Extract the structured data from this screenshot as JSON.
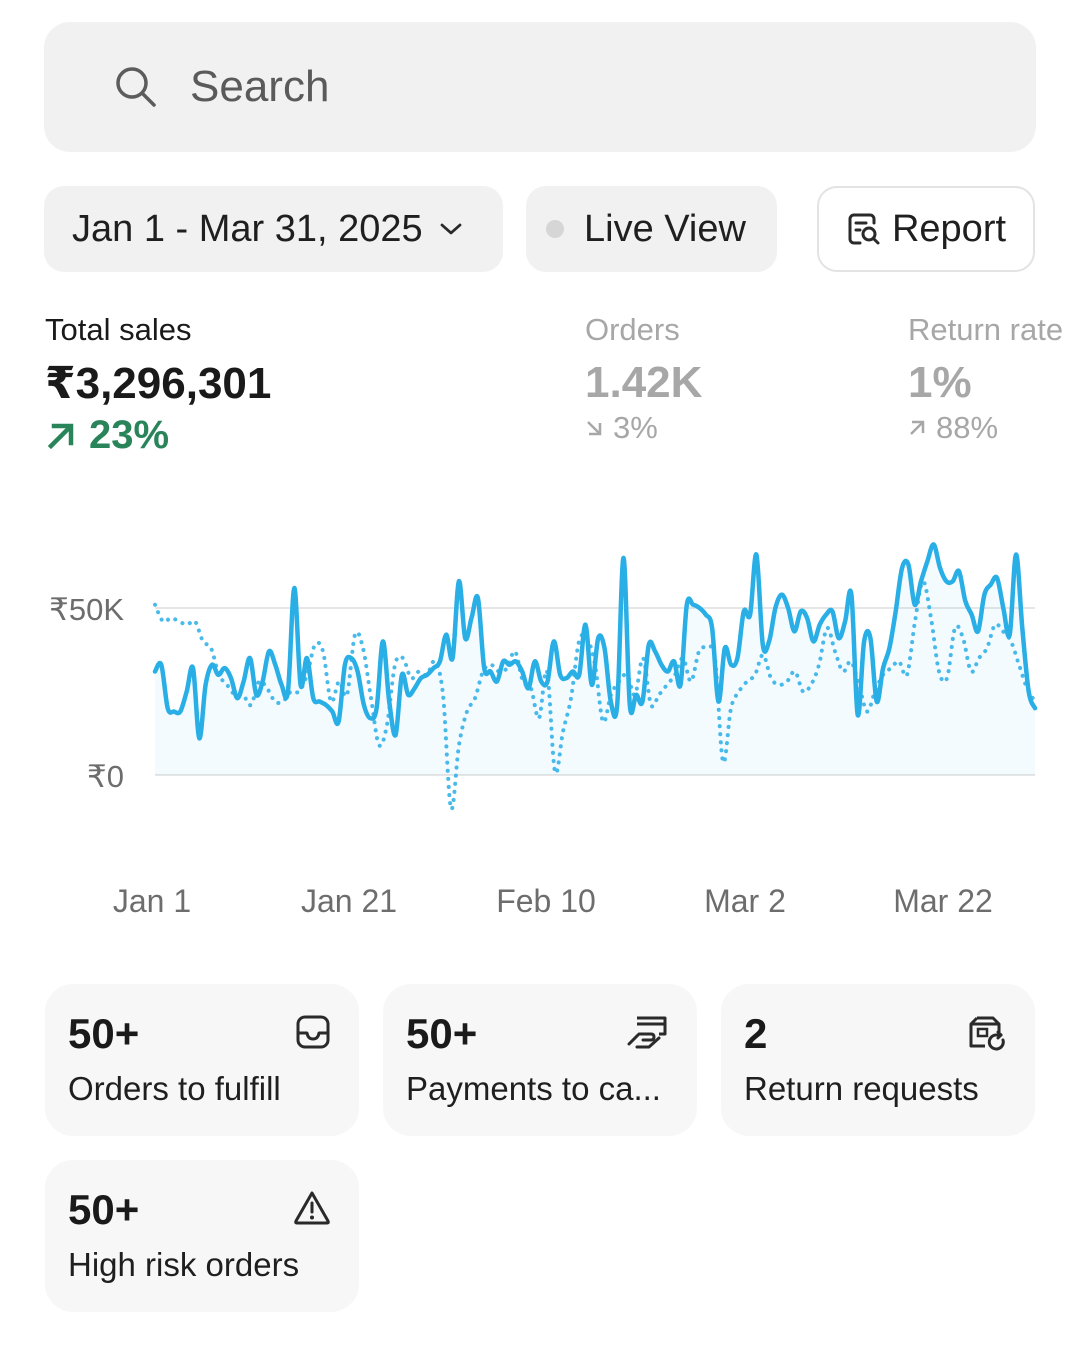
{
  "search": {
    "placeholder": "Search"
  },
  "filters": {
    "date_range": "Jan 1 - Mar 31, 2025",
    "live_view": "Live View",
    "report": "Report"
  },
  "metrics": {
    "total_sales": {
      "label": "Total sales",
      "value": "₹3,296,301",
      "change": "23%",
      "direction": "up"
    },
    "orders": {
      "label": "Orders",
      "value": "1.42K",
      "change": "3%",
      "direction": "down"
    },
    "return_rate": {
      "label": "Return rate",
      "value": "1%",
      "change": "88%",
      "direction": "up"
    }
  },
  "colors": {
    "accent_line": "#29aee6",
    "positive": "#29845a",
    "muted": "#a7a7a7"
  },
  "chart_data": {
    "type": "line",
    "x_tick_labels": [
      "Jan 1",
      "Jan 21",
      "Feb 10",
      "Mar 2",
      "Mar 22"
    ],
    "y_tick_labels": [
      "₹50K",
      "₹0"
    ],
    "ylim": [
      -10000,
      72000
    ],
    "grid": true,
    "series": [
      {
        "style": "solid",
        "values": [
          31000,
          33000,
          20000,
          19000,
          19000,
          25000,
          32000,
          11000,
          27000,
          33000,
          30000,
          32000,
          29000,
          23000,
          28000,
          35000,
          24000,
          28000,
          37000,
          33000,
          27000,
          25000,
          56000,
          27000,
          35000,
          23000,
          22000,
          21000,
          19000,
          16000,
          33000,
          35000,
          31000,
          21000,
          17000,
          20000,
          40000,
          22000,
          12000,
          30000,
          24000,
          26000,
          29000,
          30000,
          32000,
          34000,
          42000,
          35000,
          58000,
          41000,
          47000,
          53000,
          32000,
          31000,
          28000,
          34000,
          33000,
          34000,
          31000,
          26000,
          34000,
          28000,
          28000,
          40000,
          30000,
          29000,
          31000,
          30000,
          45000,
          27000,
          41000,
          38000,
          22000,
          21000,
          65000,
          21000,
          24000,
          22000,
          39000,
          37000,
          33000,
          31000,
          34000,
          27000,
          51000,
          51000,
          50000,
          48000,
          44000,
          22000,
          38000,
          33000,
          35000,
          49000,
          48000,
          66000,
          39000,
          40000,
          50000,
          54000,
          50000,
          43000,
          49000,
          47000,
          40000,
          45000,
          48000,
          49000,
          41000,
          46000,
          54000,
          18000,
          40000,
          41000,
          22000,
          32000,
          38000,
          49000,
          62000,
          63000,
          51000,
          58000,
          64000,
          69000,
          62000,
          58000,
          58000,
          61000,
          52000,
          48000,
          43000,
          54000,
          57000,
          59000,
          50000,
          42000,
          66000,
          44000,
          25000,
          20000
        ]
      },
      {
        "style": "dotted",
        "values": [
          51000,
          46000,
          47000,
          46000,
          45000,
          46000,
          40000,
          38000,
          30000,
          27000,
          24000,
          24000,
          21000,
          28000,
          26000,
          22000,
          22000,
          25000,
          25000,
          30000,
          39000,
          37000,
          22000,
          28000,
          24000,
          42000,
          38000,
          23000,
          9000,
          15000,
          33000,
          35000,
          29000,
          31000,
          30000,
          34000,
          24000,
          -10000,
          9000,
          19000,
          23000,
          31000,
          33000,
          31000,
          32000,
          37000,
          28000,
          26000,
          17000,
          31000,
          1000,
          13000,
          23000,
          40000,
          41000,
          33000,
          16000,
          24000,
          28000,
          30000,
          24000,
          35000,
          21000,
          24000,
          27000,
          30000,
          35000,
          28000,
          37000,
          38000,
          35000,
          4000,
          20000,
          25000,
          28000,
          30000,
          36000,
          29000,
          27000,
          28000,
          31000,
          25000,
          27000,
          33000,
          44000,
          37000,
          31000,
          34000,
          27000,
          19000,
          25000,
          30000,
          32000,
          34000,
          30000,
          46000,
          58000,
          47000,
          31000,
          29000,
          44000,
          41000,
          31000,
          35000,
          38000,
          45000,
          43000,
          40000,
          33000,
          26000,
          22000
        ]
      }
    ]
  },
  "cards": [
    {
      "value": "50+",
      "label": "Orders to fulfill",
      "icon": "inbox-icon"
    },
    {
      "value": "50+",
      "label": "Payments to ca...",
      "icon": "payment-hand-icon"
    },
    {
      "value": "2",
      "label": "Return requests",
      "icon": "return-icon"
    },
    {
      "value": "50+",
      "label": "High risk orders",
      "icon": "warning-icon"
    }
  ]
}
